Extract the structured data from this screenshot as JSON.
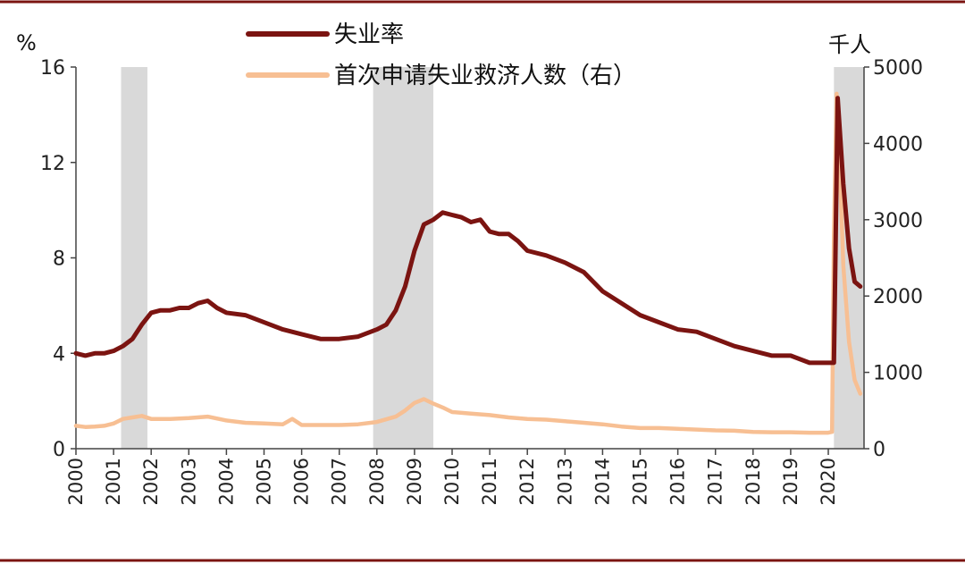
{
  "chart_data": {
    "type": "line",
    "left_unit": "%",
    "right_unit": "千人",
    "left_axis": {
      "ylim": [
        0,
        16
      ],
      "ticks": [
        0,
        4,
        8,
        12,
        16
      ]
    },
    "right_axis": {
      "ylim": [
        0,
        5000
      ],
      "ticks": [
        0,
        1000,
        2000,
        3000,
        4000,
        5000
      ]
    },
    "x_ticks": [
      "2000",
      "2001",
      "2002",
      "2003",
      "2004",
      "2005",
      "2006",
      "2007",
      "2008",
      "2009",
      "2010",
      "2011",
      "2012",
      "2013",
      "2014",
      "2015",
      "2016",
      "2017",
      "2018",
      "2019",
      "2020"
    ],
    "x_range": [
      2000.0,
      2020.95
    ],
    "recessions": [
      {
        "start": 2001.2,
        "end": 2001.9
      },
      {
        "start": 2007.9,
        "end": 2009.5
      },
      {
        "start": 2020.15,
        "end": 2020.95
      }
    ],
    "colors": {
      "unemployment": "#7b1411",
      "claims": "#f7bf93",
      "recession": "#d9d9d9",
      "frame": "#7b1411"
    },
    "series": [
      {
        "name": "失业率",
        "axis": "left",
        "x": [
          2000.0,
          2000.25,
          2000.5,
          2000.75,
          2001.0,
          2001.25,
          2001.5,
          2001.75,
          2002.0,
          2002.25,
          2002.5,
          2002.75,
          2003.0,
          2003.25,
          2003.5,
          2003.75,
          2004.0,
          2004.5,
          2005.0,
          2005.5,
          2006.0,
          2006.5,
          2007.0,
          2007.5,
          2008.0,
          2008.25,
          2008.5,
          2008.75,
          2009.0,
          2009.25,
          2009.5,
          2009.75,
          2010.0,
          2010.25,
          2010.5,
          2010.75,
          2011.0,
          2011.25,
          2011.5,
          2011.75,
          2012.0,
          2012.5,
          2013.0,
          2013.5,
          2014.0,
          2014.5,
          2015.0,
          2015.5,
          2016.0,
          2016.5,
          2017.0,
          2017.5,
          2018.0,
          2018.5,
          2019.0,
          2019.5,
          2020.0,
          2020.15,
          2020.25,
          2020.4,
          2020.55,
          2020.7,
          2020.85
        ],
        "y": [
          4.0,
          3.9,
          4.0,
          4.0,
          4.1,
          4.3,
          4.6,
          5.2,
          5.7,
          5.8,
          5.8,
          5.9,
          5.9,
          6.1,
          6.2,
          5.9,
          5.7,
          5.6,
          5.3,
          5.0,
          4.8,
          4.6,
          4.6,
          4.7,
          5.0,
          5.2,
          5.8,
          6.8,
          8.3,
          9.4,
          9.6,
          9.9,
          9.8,
          9.7,
          9.5,
          9.6,
          9.1,
          9.0,
          9.0,
          8.7,
          8.3,
          8.1,
          7.8,
          7.4,
          6.6,
          6.1,
          5.6,
          5.3,
          5.0,
          4.9,
          4.6,
          4.3,
          4.1,
          3.9,
          3.9,
          3.6,
          3.6,
          3.6,
          14.7,
          11.1,
          8.4,
          7.0,
          6.8
        ]
      },
      {
        "name": "首次申请失业救济人数（右）",
        "axis": "right",
        "x": [
          2000.0,
          2000.25,
          2000.5,
          2000.75,
          2001.0,
          2001.25,
          2001.5,
          2001.75,
          2002.0,
          2002.5,
          2003.0,
          2003.5,
          2004.0,
          2004.5,
          2005.0,
          2005.5,
          2005.75,
          2006.0,
          2006.5,
          2007.0,
          2007.5,
          2008.0,
          2008.5,
          2008.75,
          2009.0,
          2009.25,
          2009.5,
          2009.75,
          2010.0,
          2010.5,
          2011.0,
          2011.5,
          2012.0,
          2012.5,
          2013.0,
          2013.5,
          2014.0,
          2014.5,
          2015.0,
          2015.5,
          2016.0,
          2016.5,
          2017.0,
          2017.5,
          2018.0,
          2018.5,
          2019.0,
          2019.5,
          2020.0,
          2020.1,
          2020.15,
          2020.22,
          2020.3,
          2020.4,
          2020.55,
          2020.7,
          2020.85
        ],
        "y": [
          300,
          285,
          290,
          300,
          330,
          390,
          410,
          430,
          390,
          390,
          400,
          420,
          370,
          340,
          330,
          320,
          390,
          310,
          310,
          310,
          320,
          350,
          420,
          500,
          600,
          650,
          590,
          540,
          480,
          460,
          440,
          410,
          390,
          380,
          360,
          340,
          320,
          290,
          270,
          270,
          260,
          250,
          240,
          235,
          220,
          215,
          215,
          210,
          210,
          220,
          2800,
          4650,
          3800,
          2400,
          1400,
          900,
          720
        ]
      }
    ]
  },
  "legend": [
    {
      "label": "失业率",
      "series": 0
    },
    {
      "label": "首次申请失业救济人数（右）",
      "series": 1
    }
  ]
}
